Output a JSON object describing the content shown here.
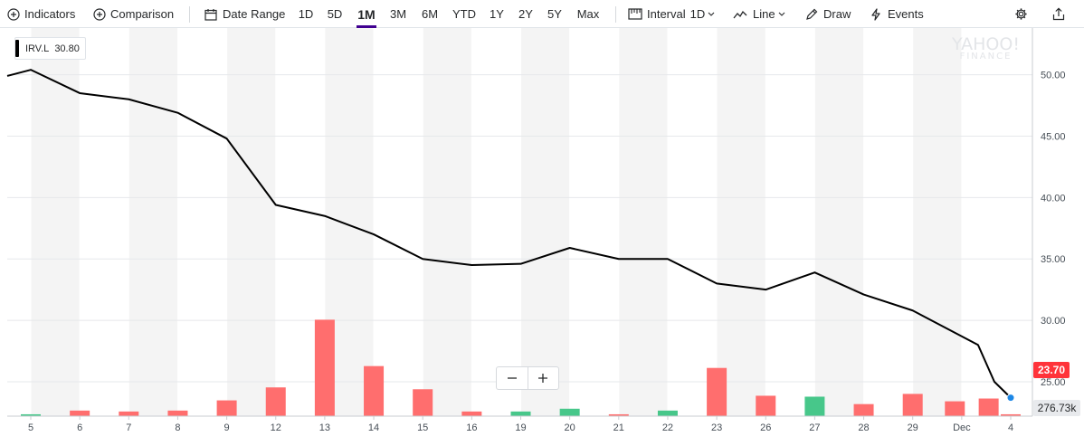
{
  "toolbar": {
    "indicators": "Indicators",
    "comparison": "Comparison",
    "date_range": "Date Range",
    "ranges": [
      "1D",
      "5D",
      "1M",
      "3M",
      "6M",
      "YTD",
      "1Y",
      "2Y",
      "5Y",
      "Max"
    ],
    "active_range": "1M",
    "interval_label": "Interval",
    "interval_value": "1D",
    "chart_type": "Line",
    "draw": "Draw",
    "events": "Events"
  },
  "legend": {
    "symbol": "IRV.L",
    "value": "30.80"
  },
  "watermark": {
    "line1": "YAHOO!",
    "line2": "FINANCE"
  },
  "zoom": {
    "minus": "−",
    "plus": "+"
  },
  "tags": {
    "last_price": "23.70",
    "last_volume": "276.73k"
  },
  "colors": {
    "price_line": "#000000",
    "volume_down": "#ff6e6e",
    "volume_up": "#47c78a",
    "last_price_tag": "#ff333a",
    "last_point": "#1c87e6",
    "stripe": "#f4f4f4"
  },
  "chart_data": {
    "type": "line",
    "title": "",
    "ylim": [
      22.2,
      53.8
    ],
    "y_ticks": [
      "50.00",
      "45.00",
      "40.00",
      "35.00",
      "30.00",
      "25.00"
    ],
    "x_ticks": [
      "5",
      "6",
      "7",
      "8",
      "9",
      "12",
      "13",
      "14",
      "15",
      "16",
      "19",
      "20",
      "21",
      "22",
      "23",
      "26",
      "27",
      "28",
      "29",
      "Dec",
      "4"
    ],
    "grid": true,
    "legend_position": "top-left",
    "series": [
      {
        "name": "IRV.L",
        "x": [
          "",
          "5",
          "6",
          "7",
          "8",
          "9",
          "12",
          "13",
          "14",
          "15",
          "16",
          "19",
          "20",
          "21",
          "22",
          "23",
          "26",
          "27",
          "28",
          "29",
          "",
          "",
          "4"
        ],
        "values": [
          49.9,
          50.4,
          48.5,
          48.0,
          46.9,
          44.8,
          39.4,
          38.5,
          37.0,
          35.0,
          34.5,
          34.6,
          35.9,
          35.0,
          35.0,
          33.0,
          32.5,
          33.9,
          32.1,
          30.8,
          28.0,
          25.0,
          23.7
        ]
      }
    ],
    "volume": {
      "unit": "relative",
      "values": [
        0.01,
        0.03,
        0.025,
        0.03,
        0.085,
        0.155,
        0.52,
        0.27,
        0.145,
        0.025,
        0.025,
        0.04,
        0.01,
        0.03,
        0.26,
        0.11,
        0.105,
        0.065,
        0.12,
        0.08,
        0.095,
        0.01
      ],
      "direction": [
        "up",
        "down",
        "down",
        "down",
        "down",
        "down",
        "down",
        "down",
        "down",
        "down",
        "up",
        "up",
        "down",
        "up",
        "down",
        "down",
        "up",
        "down",
        "down",
        "down",
        "down",
        "down"
      ]
    }
  }
}
